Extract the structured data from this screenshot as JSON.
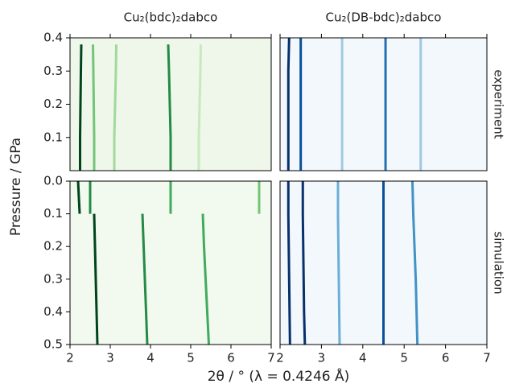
{
  "figure": {
    "xlabel": "2θ  / ° (λ = 0.4246 Å)",
    "ylabel": "Pressure / GPa"
  },
  "chart_data": [
    {
      "type": "line",
      "title": "Cu₂(bdc)₂dabco",
      "background": "#eef7ea",
      "xlim": [
        2,
        7
      ],
      "xticks": [
        2,
        3,
        4,
        5,
        6,
        7
      ],
      "ylim": [
        0,
        0.4
      ],
      "yticks": [
        0.1,
        0.2,
        0.3,
        0.4
      ],
      "y_inverted": false,
      "x": [
        0,
        0.1,
        0.2,
        0.3,
        0.38
      ],
      "series": [
        {
          "color": "#00441b",
          "values": [
            2.25,
            2.25,
            2.26,
            2.27,
            2.28
          ]
        },
        {
          "color": "#74c476",
          "values": [
            2.6,
            2.6,
            2.59,
            2.58,
            2.57
          ]
        },
        {
          "color": "#a1d99b",
          "values": [
            3.1,
            3.1,
            3.12,
            3.14,
            3.15
          ]
        },
        {
          "color": "#238b45",
          "values": [
            4.5,
            4.5,
            4.48,
            4.46,
            4.44
          ]
        },
        {
          "color": "#c7e9c0",
          "values": [
            5.2,
            5.2,
            5.22,
            5.24,
            5.25
          ]
        }
      ]
    },
    {
      "type": "line",
      "row_label": "experiment",
      "title": "Cu₂(DB-bdc)₂dabco",
      "background": "#f3f8fd",
      "xlim": [
        2,
        7
      ],
      "xticks": [
        2,
        3,
        4,
        5,
        6,
        7
      ],
      "ylim": [
        0,
        0.4
      ],
      "y_inverted": false,
      "x": [
        0,
        0.1,
        0.2,
        0.3,
        0.4
      ],
      "series": [
        {
          "color": "#08306b",
          "values": [
            2.2,
            2.2,
            2.2,
            2.2,
            2.22
          ]
        },
        {
          "color": "#08519c",
          "values": [
            2.5,
            2.5,
            2.5,
            2.5,
            2.5
          ]
        },
        {
          "color": "#9ecae1",
          "values": [
            3.5,
            3.5,
            3.5,
            3.5,
            3.5
          ]
        },
        {
          "color": "#2171b5",
          "values": [
            4.55,
            4.55,
            4.55,
            4.55,
            4.55
          ]
        },
        {
          "color": "#9ecae1",
          "values": [
            5.4,
            5.4,
            5.4,
            5.4,
            5.4
          ]
        }
      ]
    },
    {
      "type": "line",
      "background": "#f2f9ef",
      "xlim": [
        2,
        7
      ],
      "xticks": [
        2,
        3,
        4,
        5,
        6,
        7
      ],
      "ylim": [
        0,
        0.5
      ],
      "yticks": [
        {
          "value": 0,
          "label": "0.0"
        },
        0.1,
        0.2,
        0.3,
        0.4,
        0.5
      ],
      "y_inverted": true,
      "x": [
        0,
        0.05,
        0.1,
        0.2,
        0.3,
        0.4,
        0.5
      ],
      "series": [
        {
          "color": "#00441b",
          "values": [
            2.2,
            2.22,
            2.24,
            null,
            null,
            null,
            null
          ]
        },
        {
          "color": "#238b45",
          "values": [
            2.5,
            2.5,
            2.5,
            null,
            null,
            null,
            null
          ]
        },
        {
          "color": "#41ab5d",
          "values": [
            4.5,
            4.5,
            4.5,
            null,
            null,
            null,
            null
          ]
        },
        {
          "color": "#74c476",
          "values": [
            6.7,
            6.7,
            6.7,
            null,
            null,
            null,
            null
          ]
        },
        {
          "color": "#00441b",
          "values": [
            null,
            null,
            2.6,
            2.62,
            2.64,
            2.66,
            2.68
          ]
        },
        {
          "color": "#238b45",
          "values": [
            null,
            null,
            3.8,
            3.83,
            3.86,
            3.89,
            3.92
          ]
        },
        {
          "color": "#41ab5d",
          "values": [
            null,
            null,
            5.3,
            5.33,
            5.37,
            5.41,
            5.45
          ]
        }
      ]
    },
    {
      "type": "line",
      "row_label": "simulation",
      "background": "#f3f8fd",
      "xlim": [
        2,
        7
      ],
      "xticks": [
        2,
        3,
        4,
        5,
        6,
        7
      ],
      "ylim": [
        0,
        0.5
      ],
      "y_inverted": true,
      "x": [
        0,
        0.1,
        0.2,
        0.3,
        0.4,
        0.5
      ],
      "series": [
        {
          "color": "#08306b",
          "values": [
            2.2,
            2.2,
            2.21,
            2.22,
            2.23,
            2.24
          ]
        },
        {
          "color": "#08306b",
          "values": [
            2.55,
            2.55,
            2.56,
            2.57,
            2.58,
            2.6
          ]
        },
        {
          "color": "#6baed6",
          "values": [
            3.4,
            3.4,
            3.41,
            3.42,
            3.43,
            3.44
          ]
        },
        {
          "color": "#08519c",
          "values": [
            4.5,
            4.5,
            4.5,
            4.5,
            4.5,
            4.5
          ]
        },
        {
          "color": "#4292c6",
          "values": [
            5.2,
            5.22,
            5.25,
            5.28,
            5.3,
            5.32
          ]
        }
      ]
    }
  ]
}
